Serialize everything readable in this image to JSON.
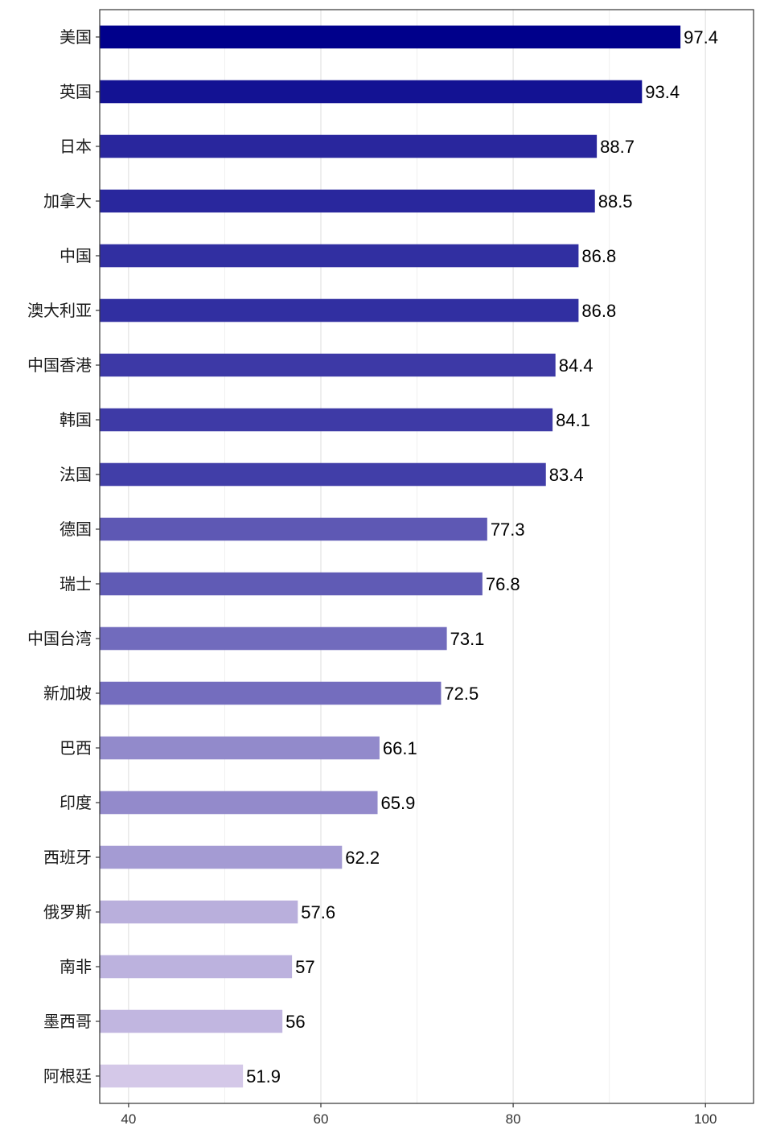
{
  "chart_data": {
    "type": "bar",
    "orientation": "horizontal",
    "title": "",
    "xlabel": "",
    "ylabel": "",
    "categories": [
      "美国",
      "英国",
      "日本",
      "加拿大",
      "中国",
      "澳大利亚",
      "中国香港",
      "韩国",
      "法国",
      "德国",
      "瑞士",
      "中国台湾",
      "新加坡",
      "巴西",
      "印度",
      "西班牙",
      "俄罗斯",
      "南非",
      "墨西哥",
      "阿根廷"
    ],
    "values": [
      97.4,
      93.4,
      88.7,
      88.5,
      86.8,
      86.8,
      84.4,
      84.1,
      83.4,
      77.3,
      76.8,
      73.1,
      72.5,
      66.1,
      65.9,
      62.2,
      57.6,
      57,
      56,
      51.9
    ],
    "value_labels": [
      "97.4",
      "93.4",
      "88.7",
      "88.5",
      "86.8",
      "86.8",
      "84.4",
      "84.1",
      "83.4",
      "77.3",
      "76.8",
      "73.1",
      "72.5",
      "66.1",
      "65.9",
      "62.2",
      "57.6",
      "57",
      "56",
      "51.9"
    ],
    "xlim": [
      37,
      105
    ],
    "bar_baseline": 37,
    "x_ticks": [
      40,
      60,
      80,
      100
    ],
    "x_tick_labels": [
      "40",
      "60",
      "80",
      "100"
    ],
    "grid": true,
    "legend": false,
    "color_low": "#d4c8e8",
    "color_high": "#00008b"
  }
}
